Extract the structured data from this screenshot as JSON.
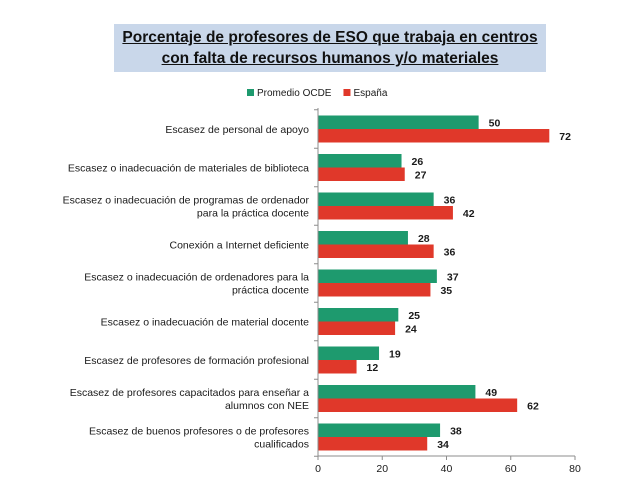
{
  "chart_data": {
    "type": "bar",
    "orientation": "horizontal",
    "title": "Porcentaje de profesores de ESO que trabaja en centros con falta de recursos humanos y/o materiales",
    "title_lines": [
      "Porcentaje de profesores de ESO que trabaja en centros",
      "con falta de recursos humanos y/o materiales"
    ],
    "categories": [
      [
        "Escasez de personal de apoyo"
      ],
      [
        "Escasez o inadecuación de materiales de biblioteca"
      ],
      [
        "Escasez o inadecuación de programas de ordenador",
        "para la práctica docente"
      ],
      [
        "Conexión a Internet deficiente"
      ],
      [
        "Escasez o inadecuación de ordenadores para la",
        "práctica docente"
      ],
      [
        "Escasez o inadecuación de material docente"
      ],
      [
        "Escasez de profesores de formación profesional"
      ],
      [
        "Escasez de profesores capacitados para enseñar a",
        "alumnos con NEE"
      ],
      [
        "Escasez de buenos profesores o de profesores",
        "cualificados"
      ]
    ],
    "series": [
      {
        "name": "Promedio OCDE",
        "color": "#1e9a6e",
        "values": [
          50,
          26,
          36,
          28,
          37,
          25,
          19,
          49,
          38
        ]
      },
      {
        "name": "España",
        "color": "#e0382a",
        "values": [
          72,
          27,
          42,
          36,
          35,
          24,
          12,
          62,
          34
        ]
      }
    ],
    "x_ticks": [
      0,
      20,
      40,
      60,
      80
    ],
    "xlim": [
      0,
      80
    ],
    "legend": "top",
    "xlabel": "",
    "ylabel": ""
  }
}
